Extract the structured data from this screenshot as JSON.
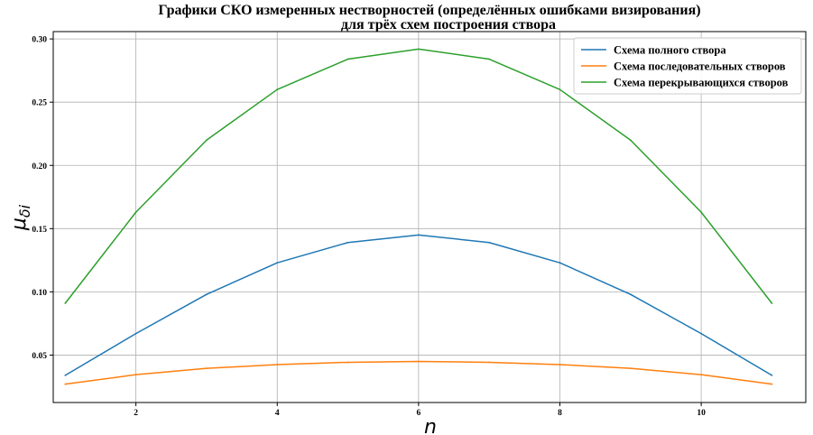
{
  "chart_data": {
    "type": "line",
    "title": "Графики СКО измеренных нестворностей (определённых ошибками визирования)",
    "subtitle": "для трёх схем построения створа",
    "xlabel": "n",
    "ylabel": "μ",
    "ylabel_subscript": "δi",
    "x": [
      1,
      2,
      3,
      4,
      5,
      6,
      7,
      8,
      9,
      10,
      11
    ],
    "xlim": [
      0.83,
      11.48
    ],
    "ylim": [
      0.0125,
      0.3058
    ],
    "x_ticks": [
      2,
      4,
      6,
      8,
      10
    ],
    "x_tick_labels": [
      "2",
      "4",
      "6",
      "8",
      "10"
    ],
    "y_ticks": [
      0.05,
      0.1,
      0.15,
      0.2,
      0.25,
      0.3
    ],
    "y_tick_labels": [
      "0.05",
      "0.10",
      "0.15",
      "0.20",
      "0.25",
      "0.30"
    ],
    "grid": true,
    "legend_position": "top-right",
    "series": [
      {
        "name": "Схема полного створа",
        "color": "#1f77b4",
        "values": [
          0.034,
          0.067,
          0.098,
          0.123,
          0.139,
          0.145,
          0.139,
          0.123,
          0.098,
          0.067,
          0.034
        ]
      },
      {
        "name": "Схема последовательных створов",
        "color": "#ff7f0e",
        "values": [
          0.027,
          0.0345,
          0.0395,
          0.0425,
          0.0443,
          0.045,
          0.0443,
          0.0425,
          0.0395,
          0.0345,
          0.027
        ]
      },
      {
        "name": "Схема перекрывающихся створов",
        "color": "#2ca02c",
        "values": [
          0.091,
          0.163,
          0.22,
          0.26,
          0.284,
          0.292,
          0.284,
          0.26,
          0.22,
          0.163,
          0.091
        ]
      }
    ]
  }
}
